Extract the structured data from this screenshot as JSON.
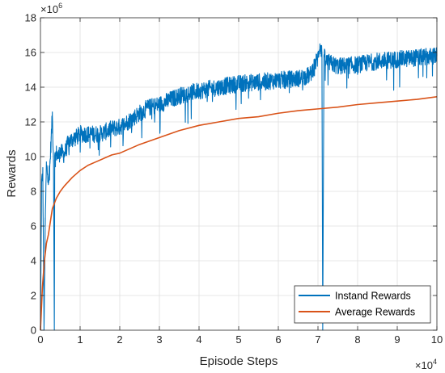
{
  "chart_data": {
    "type": "line",
    "xlabel": "Episode Steps",
    "ylabel": "Rewards",
    "x_exponent_label": "×10",
    "x_exponent_power": "4",
    "y_exponent_label": "×10",
    "y_exponent_power": "6",
    "xlim": [
      0,
      100000
    ],
    "ylim": [
      0,
      18000000
    ],
    "xticks": [
      0,
      10000,
      20000,
      30000,
      40000,
      50000,
      60000,
      70000,
      80000,
      90000,
      100000
    ],
    "xtick_labels": [
      "0",
      "1",
      "2",
      "3",
      "4",
      "5",
      "6",
      "7",
      "8",
      "9",
      "10"
    ],
    "yticks": [
      0,
      2000000,
      4000000,
      6000000,
      8000000,
      10000000,
      12000000,
      14000000,
      16000000,
      18000000
    ],
    "ytick_labels": [
      "0",
      "2",
      "4",
      "6",
      "8",
      "10",
      "12",
      "14",
      "16",
      "18"
    ],
    "grid": true,
    "legend_position": "bottom-right",
    "series": [
      {
        "name": "Instand Rewards",
        "color": "#0072BD",
        "noise_amplitude": 500000,
        "x": [
          0,
          300,
          600,
          900,
          1200,
          1500,
          1800,
          2100,
          2400,
          2700,
          3000,
          3300,
          3500,
          3600,
          3800,
          4000,
          4500,
          5000,
          6000,
          7000,
          8000,
          9000,
          10000,
          12000,
          15000,
          18000,
          20000,
          22000,
          25000,
          27000,
          30000,
          33000,
          35000,
          40000,
          45000,
          50000,
          55000,
          60000,
          65000,
          68000,
          69000,
          70000,
          70500,
          71000,
          71200,
          71500,
          72000,
          75000,
          80000,
          85000,
          90000,
          95000,
          100000
        ],
        "y": [
          200000,
          8500000,
          9000000,
          0,
          6000000,
          9500000,
          9000000,
          8800000,
          9600000,
          11000000,
          12400000,
          9800000,
          0,
          9900000,
          10000000,
          10200000,
          10000000,
          10300000,
          10100000,
          10800000,
          11000000,
          11100000,
          11300000,
          11300000,
          11300000,
          11600000,
          11700000,
          12000000,
          12500000,
          12800000,
          13000000,
          13300000,
          13500000,
          13800000,
          14000000,
          14200000,
          14300000,
          14400000,
          14500000,
          14700000,
          15200000,
          15700000,
          16500000,
          16000000,
          0,
          15800000,
          15500000,
          15200000,
          15300000,
          15500000,
          15600000,
          15700000,
          15800000
        ]
      },
      {
        "name": "Average Rewards",
        "color": "#D95319",
        "x": [
          0,
          500,
          1000,
          1500,
          2000,
          3000,
          4000,
          5000,
          6000,
          8000,
          10000,
          12000,
          14000,
          16000,
          18000,
          20000,
          25000,
          30000,
          35000,
          40000,
          45000,
          50000,
          55000,
          60000,
          65000,
          70000,
          75000,
          80000,
          85000,
          90000,
          95000,
          100000
        ],
        "y": [
          0,
          2500000,
          4000000,
          5000000,
          5500000,
          7000000,
          7600000,
          8000000,
          8300000,
          8800000,
          9200000,
          9500000,
          9700000,
          9900000,
          10100000,
          10200000,
          10700000,
          11100000,
          11500000,
          11800000,
          12000000,
          12200000,
          12300000,
          12500000,
          12650000,
          12750000,
          12850000,
          13000000,
          13100000,
          13200000,
          13300000,
          13450000
        ]
      }
    ]
  }
}
